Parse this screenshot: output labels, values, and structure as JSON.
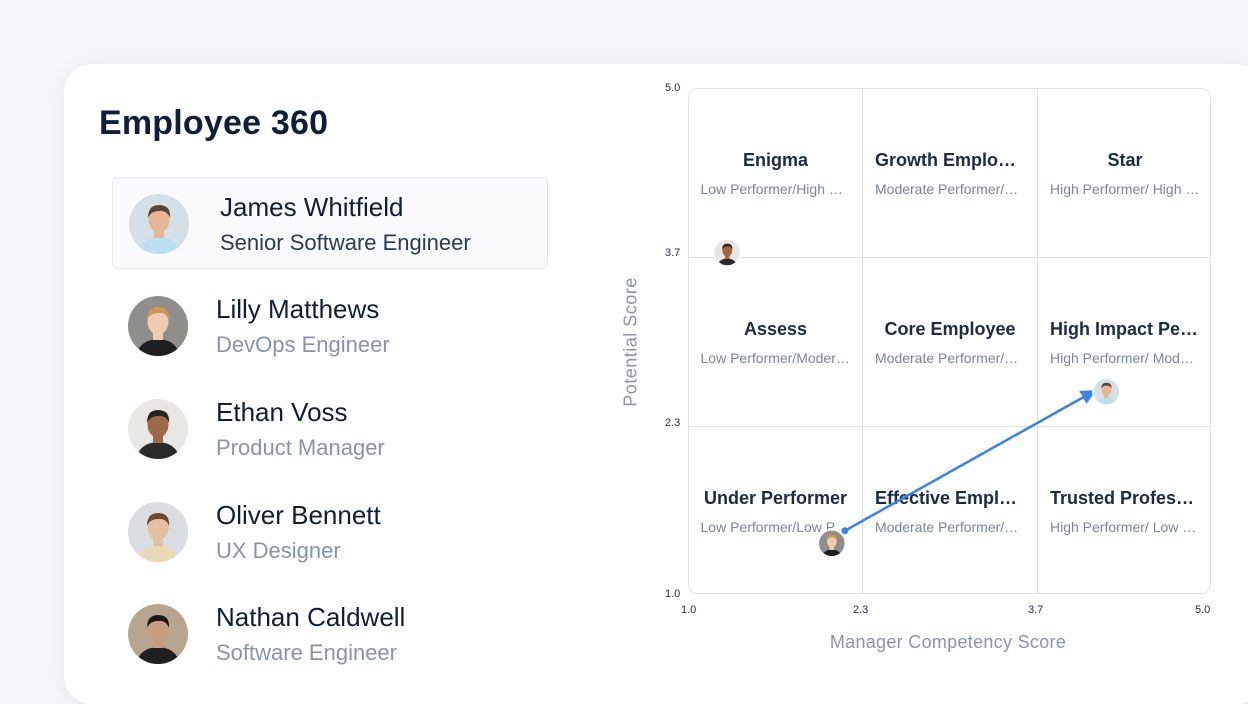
{
  "page": {
    "title": "Employee 360"
  },
  "employees": [
    {
      "name": "James Whitfield",
      "role": "Senior Software Engineer",
      "selected": true,
      "avatar": {
        "skin": "#e6b795",
        "hair": "#5a4636",
        "shirt": "#b9dff0",
        "bg": "#d7dfe6"
      }
    },
    {
      "name": "Lilly Matthews",
      "role": "DevOps Engineer",
      "selected": false,
      "avatar": {
        "skin": "#efcbb1",
        "hair": "#c79a5a",
        "shirt": "#1f1f22",
        "bg": "#8f8e8a"
      }
    },
    {
      "name": "Ethan Voss",
      "role": "Product Manager",
      "selected": false,
      "avatar": {
        "skin": "#9c6a4a",
        "hair": "#2b2520",
        "shirt": "#2b2b2e",
        "bg": "#e9e7e3"
      }
    },
    {
      "name": "Oliver Bennett",
      "role": "UX Designer",
      "selected": false,
      "avatar": {
        "skin": "#e3bfa3",
        "hair": "#6d4a30",
        "shirt": "#e9d8b8",
        "bg": "#d9dde2"
      }
    },
    {
      "name": "Nathan Caldwell",
      "role": "Software Engineer",
      "selected": false,
      "avatar": {
        "skin": "#c99c80",
        "hair": "#1d1a18",
        "shirt": "#202022",
        "bg": "#b7a58f"
      }
    }
  ],
  "grid": {
    "cells": [
      {
        "title": "Enigma",
        "subtitle": "Low Performer/High Potential",
        "shade": 0
      },
      {
        "title": "Growth Employee",
        "subtitle": "Moderate Performer/High Potential",
        "shade": 1
      },
      {
        "title": "Star",
        "subtitle": "High Performer/ High Potential",
        "shade": 0
      },
      {
        "title": "Assess",
        "subtitle": "Low Performer/Moderate Potential",
        "shade": 1
      },
      {
        "title": "Core Employee",
        "subtitle": "Moderate Performer/Moderate Potential",
        "shade": 2
      },
      {
        "title": "High Impact Performer",
        "subtitle": "High Performer/ Moderate Potential",
        "shade": 1
      },
      {
        "title": "Under Performer",
        "subtitle": "Low Performer/Low Potential",
        "shade": 0
      },
      {
        "title": "Effective Employee",
        "subtitle": "Moderate Performer/Low Potential",
        "shade": 1
      },
      {
        "title": "Trusted Professional",
        "subtitle": "High Performer/ Low Potential",
        "shade": 0
      }
    ]
  },
  "axes": {
    "x_label": "Manager Competency Score",
    "y_label": "Potential  Score",
    "x_ticks": [
      "1.0",
      "2.3",
      "3.7",
      "5.0"
    ],
    "y_ticks": [
      "5.0",
      "3.7",
      "2.3",
      "1.0"
    ]
  },
  "chart_data": {
    "type": "scatter",
    "xlabel": "Manager Competency Score",
    "ylabel": "Potential  Score",
    "xlim": [
      1.0,
      5.0
    ],
    "ylim": [
      1.0,
      5.0
    ],
    "points": [
      {
        "employee": "Ethan Voss",
        "x": 1.3,
        "y": 3.7
      },
      {
        "employee": "James Whitfield",
        "x": 4.2,
        "y": 2.6
      },
      {
        "employee": "Lilly Matthews",
        "x": 2.1,
        "y": 1.4
      }
    ],
    "arrow": {
      "from": [
        2.2,
        1.5
      ],
      "to": [
        4.1,
        2.6
      ],
      "color": "#3b82e6"
    }
  }
}
